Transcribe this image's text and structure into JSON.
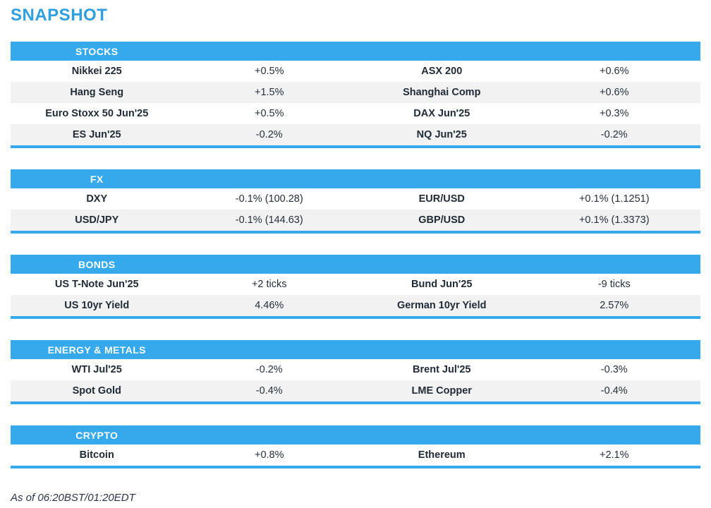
{
  "page": {
    "title": "SNAPSHOT"
  },
  "colors": {
    "accent_blue": "#36a9ec",
    "title_blue": "#2f9fe0",
    "row_alt_gray": "#f2f2f2",
    "text_dark": "#212b36"
  },
  "sections": [
    {
      "label": "STOCKS",
      "rows": [
        {
          "left_name": "Nikkei 225",
          "left_value": "+0.5%",
          "right_name": "ASX 200",
          "right_value": "+0.6%"
        },
        {
          "left_name": "Hang Seng",
          "left_value": "+1.5%",
          "right_name": "Shanghai Comp",
          "right_value": "+0.6%"
        },
        {
          "left_name": "Euro Stoxx 50 Jun'25",
          "left_value": "+0.5%",
          "right_name": "DAX Jun'25",
          "right_value": "+0.3%"
        },
        {
          "left_name": "ES Jun'25",
          "left_value": "-0.2%",
          "right_name": "NQ Jun'25",
          "right_value": "-0.2%"
        }
      ]
    },
    {
      "label": "FX",
      "rows": [
        {
          "left_name": "DXY",
          "left_value": "-0.1% (100.28)",
          "right_name": "EUR/USD",
          "right_value": "+0.1% (1.1251)"
        },
        {
          "left_name": "USD/JPY",
          "left_value": "-0.1% (144.63)",
          "right_name": "GBP/USD",
          "right_value": "+0.1% (1.3373)"
        }
      ]
    },
    {
      "label": "BONDS",
      "rows": [
        {
          "left_name": "US T-Note Jun'25",
          "left_value": "+2 ticks",
          "right_name": "Bund Jun'25",
          "right_value": "-9 ticks"
        },
        {
          "left_name": "US 10yr Yield",
          "left_value": "4.46%",
          "right_name": "German 10yr Yield",
          "right_value": "2.57%"
        }
      ]
    },
    {
      "label": "ENERGY & METALS",
      "rows": [
        {
          "left_name": "WTI Jul'25",
          "left_value": "-0.2%",
          "right_name": "Brent Jul'25",
          "right_value": "-0.3%"
        },
        {
          "left_name": "Spot Gold",
          "left_value": "-0.4%",
          "right_name": "LME Copper",
          "right_value": "-0.4%"
        }
      ]
    },
    {
      "label": "CRYPTO",
      "rows": [
        {
          "left_name": "Bitcoin",
          "left_value": "+0.8%",
          "right_name": "Ethereum",
          "right_value": "+2.1%"
        }
      ]
    }
  ],
  "footer": {
    "as_of": "As of 06:20BST/01:20EDT"
  }
}
